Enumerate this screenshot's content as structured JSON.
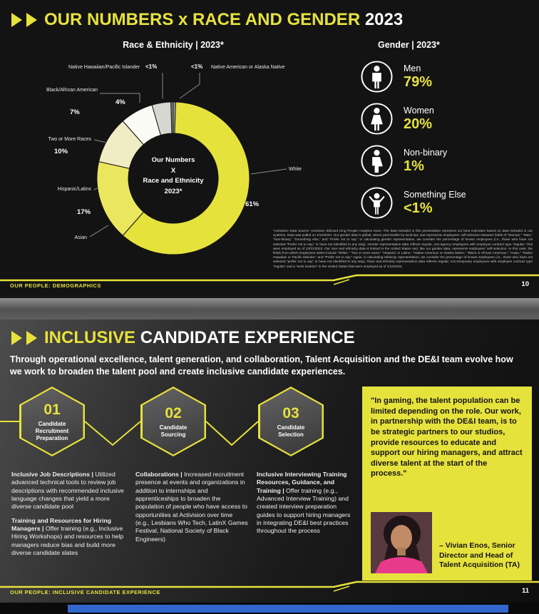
{
  "colors": {
    "accent": "#e6e23c",
    "blue_bar": "#3366cc"
  },
  "slide1": {
    "title": {
      "main": "OUR NUMBERS x RACE AND GENDER",
      "year": "2023"
    },
    "race_header": "Race & Ethnicity | 2023*",
    "gender_header": "Gender | 2023*",
    "donut_center": [
      "Our Numbers",
      "X",
      "Race and Ethnicity",
      "2023*"
    ],
    "gender_rows": [
      {
        "label": "Men",
        "value": "79%"
      },
      {
        "label": "Women",
        "value": "20%"
      },
      {
        "label": "Non-binary",
        "value": "1%"
      },
      {
        "label": "Something Else",
        "value": "<1%"
      }
    ],
    "footnote": "*Activision Data Source: Activision Blizzard King People Analytics team. The data included in this presentation represent our best estimates based on data included in our systems. Data was pulled on 1/12/2024. Our gender data is global, where permissible by local law, and represents employees’ self-selection between fields of “Woman,” “Man,” “Non-binary,” “Something else,” and “Prefer not to say.” In calculating gender representation, we consider the percentage of known employees (i.e., those who have not selected “Prefer not to say,” or have not identified in any way). Gender representation data reflects regular, non-agency employees with employee contract type “regular,” that were employed as of 12/31/2023. Our race and ethnicity data is limited to the United States and, like our gender data, represents employees’ self-selection. In this case, the fields from which employees select include “White,” “Two or more races,” “Hispanic or Latinx,” “Native American or Alaska Native,” “Black or African American,” “Asian,” “Native Hawaiian or Pacific Islander,” and “Prefer not to say.” Again, in calculating ethnicity representation, we consider the percentage of known employees (i.e., those who have not selected “prefer not to say” or have not identified in any way). Race and ethnicity representation data reflects regular, non-temporary employees with employee contract type “regular” and a “work location” in the United States that were employed as of 1/12/2024.",
    "footer": {
      "label": "OUR PEOPLE: DEMOGRAPHICS",
      "page": "10"
    }
  },
  "chart_data": {
    "type": "pie",
    "donut": true,
    "title": "Race & Ethnicity | 2023*",
    "center_label": "Our Numbers X Race and Ethnicity 2023*",
    "start_angle_deg": 0,
    "direction": "clockwise",
    "segments": [
      {
        "label": "Native American or Alaska Native",
        "value": 0.5,
        "display": "<1%",
        "color": "#a3a39f"
      },
      {
        "label": "White",
        "value": 61,
        "display": "61%",
        "color": "#e6e23c"
      },
      {
        "label": "Asian",
        "value": 17,
        "display": "17%",
        "color": "#eae75e"
      },
      {
        "label": "Hispanic/Latinx",
        "value": 10,
        "display": "10%",
        "color": "#f0edc4"
      },
      {
        "label": "Two or More Races",
        "value": 7,
        "display": "7%",
        "color": "#fbfbf6"
      },
      {
        "label": "Black/African American",
        "value": 4,
        "display": "4%",
        "color": "#d7d7d2"
      },
      {
        "label": "Native Hawaiian/Pacific Islander",
        "value": 0.5,
        "display": "<1%",
        "color": "#807f7b"
      }
    ]
  },
  "slide2": {
    "title": {
      "highlight": "INCLUSIVE",
      "rest": "CANDIDATE EXPERIENCE"
    },
    "intro": "Through operational excellence, talent generation, and collaboration, Talent Acquisition and the DE&I team evolve how we work to broaden the talent pool and create inclusive candidate experiences.",
    "steps": [
      {
        "number": "01",
        "label": "Candidate Recruitment Preparation"
      },
      {
        "number": "02",
        "label": "Candidate Sourcing"
      },
      {
        "number": "03",
        "label": "Candidate Selection"
      }
    ],
    "columns": [
      {
        "paragraphs": [
          {
            "lead": "Inclusive Job Descriptions | ",
            "body": "Utilized advanced technical tools to review job descriptions with recommended inclusive language changes that yield a more diverse candidate pool"
          },
          {
            "lead": "Training  and Resources for Hiring Managers | ",
            "body": "Offer training (e.g., Inclusive Hiring Workshops) and resources to help managers reduce bias and build more diverse candidate slates"
          }
        ]
      },
      {
        "paragraphs": [
          {
            "lead": "Collaborations | ",
            "body": "Increased recruitment presence at events and organizations in addition to internships and apprenticeships to broaden the population of people who have access to opportunities at Activision over time (e.g., Lesbians Who Tech, LatinX Games Festival, National Society of Black Engineers)"
          }
        ]
      },
      {
        "paragraphs": [
          {
            "lead": "Inclusive Interviewing Training Resources, Guidance, and Training | ",
            "body": "Offer training (e.g., Advanced Interview Training) and created interview preparation guides to support hiring managers in integrating DE&I best practices throughout the process"
          }
        ]
      }
    ],
    "quote": {
      "text": "\"In gaming, the talent population can be limited depending on the role.  Our work, in partnership with the DE&I team, is to be strategic partners to our studios, provide resources to educate and support our hiring managers, and attract diverse talent at the start of the process.\"",
      "attribution": "– Vivian Enos, Senior Director and Head of Talent Acquisition (TA)"
    },
    "footer": {
      "label": "OUR PEOPLE: INCLUSIVE CANDIDATE EXPERIENCE",
      "page": "11"
    }
  }
}
